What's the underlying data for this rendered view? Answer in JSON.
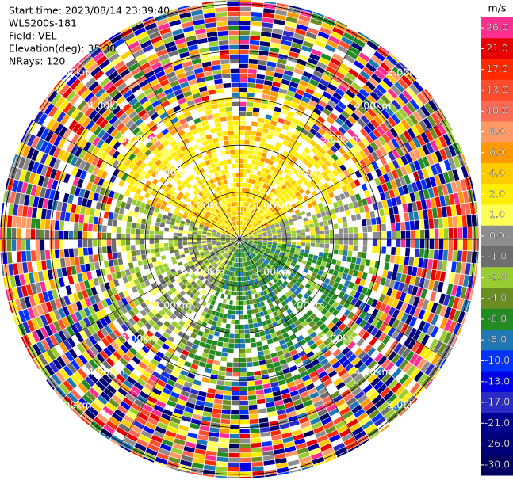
{
  "chart_data": {
    "type": "radar_ppi",
    "header": [
      "Start time: 2023/08/14 23:39:40",
      "WLS200s-181",
      "Field: VEL",
      "Elevation(deg): 35.30",
      "NRays: 120"
    ],
    "nrays": 120,
    "rings": [
      1,
      2,
      3,
      4,
      5
    ],
    "ring_labels": [
      "1.00km",
      "2.00km",
      "3.00km",
      "4.00km",
      "5.00km"
    ],
    "colorbar": {
      "unit": "m/s",
      "levels": [
        {
          "value": 26,
          "label": "26.0"
        },
        {
          "value": 21,
          "label": "21.0"
        },
        {
          "value": 17,
          "label": "17.0"
        },
        {
          "value": 13,
          "label": "13.0"
        },
        {
          "value": 10,
          "label": "10.0"
        },
        {
          "value": 8,
          "label": "8.0"
        },
        {
          "value": 6,
          "label": "6.0"
        },
        {
          "value": 4,
          "label": "4.0"
        },
        {
          "value": 2,
          "label": "2.0"
        },
        {
          "value": 1,
          "label": "1.0"
        },
        {
          "value": 0,
          "label": "0.0"
        },
        {
          "value": -1,
          "label": "-1.0"
        },
        {
          "value": -2,
          "label": "-2.0"
        },
        {
          "value": -4,
          "label": "-4.0"
        },
        {
          "value": -6,
          "label": "-6.0"
        },
        {
          "value": -8,
          "label": "-8.0"
        },
        {
          "value": -10,
          "label": "-10.0"
        },
        {
          "value": -13,
          "label": "-13.0"
        },
        {
          "value": -17,
          "label": "-17.0"
        },
        {
          "value": -21,
          "label": "-21.0"
        },
        {
          "value": -26,
          "label": "-26.0"
        },
        {
          "value": -30,
          "label": "-30.0"
        }
      ],
      "colors": [
        "#ff2f92",
        "#e60000",
        "#ff2a00",
        "#ff4d2e",
        "#ff6a55",
        "#ff9a66",
        "#ff9900",
        "#ffcc00",
        "#ffee00",
        "#ffff55",
        "#8e8e8e",
        "#6e6e6e",
        "#9acd32",
        "#6b8e23",
        "#228b22",
        "#1f77b4",
        "#0033ff",
        "#0000e6",
        "#2b2bc8",
        "#00008f",
        "#000078",
        "#000060"
      ]
    }
  }
}
